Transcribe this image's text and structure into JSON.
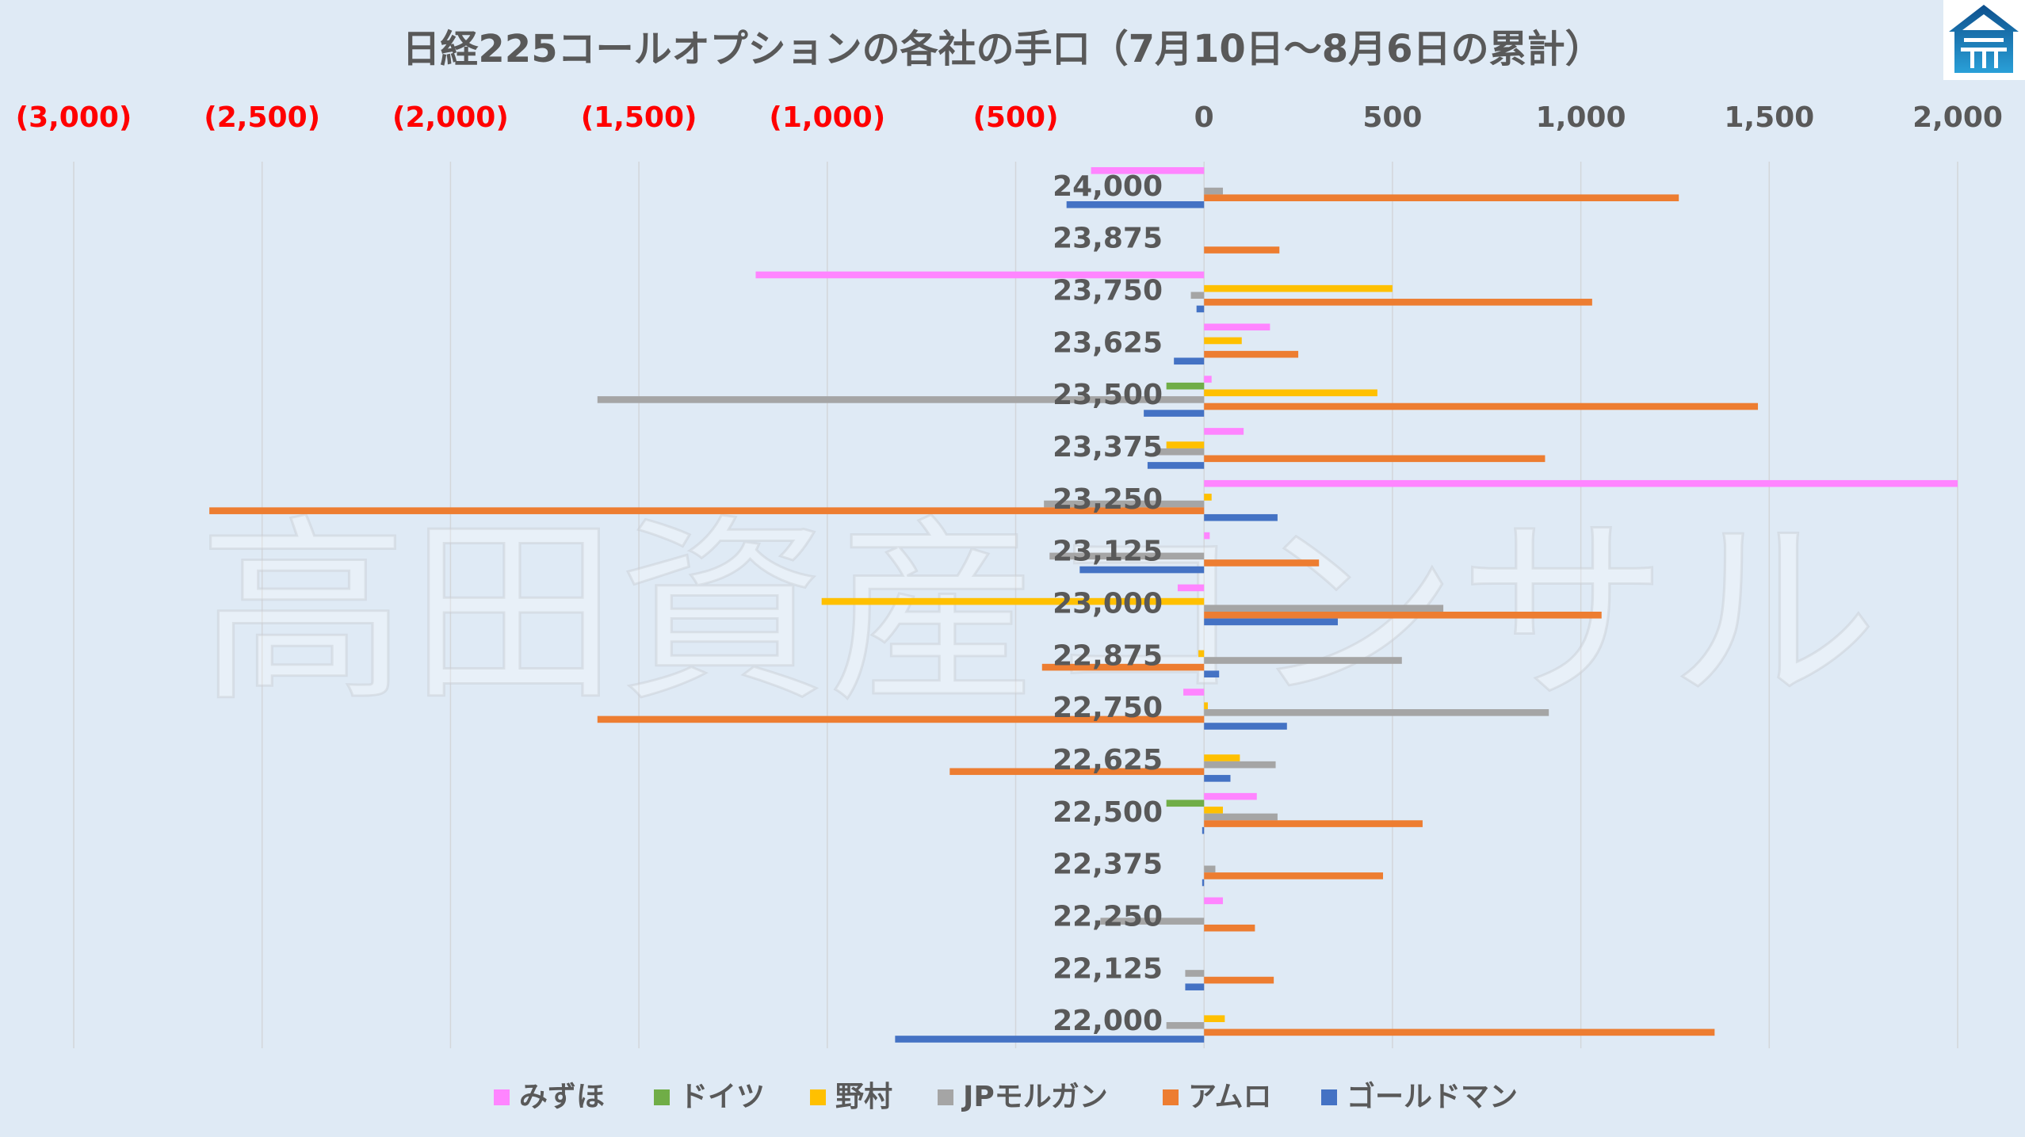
{
  "chart_data": {
    "type": "bar",
    "orientation": "horizontal",
    "title": "日経225コールオプションの各社の手口（7月10日〜8月6日の累計）",
    "xlim": [
      -3000,
      2000
    ],
    "x_ticks": [
      -3000,
      -2500,
      -2000,
      -1500,
      -1000,
      -500,
      0,
      500,
      1000,
      1500,
      2000
    ],
    "x_tick_labels": [
      "(3,000)",
      "(2,500)",
      "(2,000)",
      "(1,500)",
      "(1,000)",
      "(500)",
      "0",
      "500",
      "1,000",
      "1,500",
      "2,000"
    ],
    "negative_tick_color": "#ff0000",
    "positive_tick_color": "#595959",
    "grid": "vertical",
    "legend_position": "bottom",
    "categories": [
      "24,000",
      "23,875",
      "23,750",
      "23,625",
      "23,500",
      "23,375",
      "23,250",
      "23,125",
      "23,000",
      "22,875",
      "22,750",
      "22,625",
      "22,500",
      "22,375",
      "22,250",
      "22,125",
      "22,000"
    ],
    "series": [
      {
        "name": "みずほ",
        "color": "#ff85ff",
        "values": [
          -300,
          0,
          -1190,
          175,
          20,
          105,
          2000,
          15,
          -70,
          0,
          -55,
          0,
          140,
          0,
          50,
          0,
          0
        ]
      },
      {
        "name": "ドイツ",
        "color": "#70ad47",
        "values": [
          0,
          0,
          0,
          0,
          -100,
          0,
          0,
          0,
          0,
          0,
          0,
          0,
          -100,
          0,
          0,
          0,
          0
        ]
      },
      {
        "name": "野村",
        "color": "#ffc000",
        "values": [
          0,
          0,
          500,
          100,
          460,
          -100,
          20,
          0,
          -1015,
          -15,
          10,
          95,
          50,
          0,
          0,
          0,
          55
        ]
      },
      {
        "name": "JPモルガン",
        "color": "#a5a5a5",
        "values": [
          50,
          0,
          -35,
          0,
          -1610,
          -130,
          -425,
          -410,
          635,
          525,
          915,
          190,
          195,
          30,
          -275,
          -50,
          -100
        ]
      },
      {
        "name": "アムロ",
        "color": "#ed7d31",
        "values": [
          1260,
          200,
          1030,
          250,
          1470,
          905,
          -2640,
          305,
          1055,
          -430,
          -1610,
          -675,
          580,
          475,
          135,
          185,
          1355
        ]
      },
      {
        "name": "ゴールドマン",
        "color": "#4472c4",
        "values": [
          -365,
          0,
          -20,
          -80,
          -160,
          -150,
          195,
          -330,
          355,
          40,
          220,
          70,
          -5,
          -5,
          0,
          -50,
          -820
        ]
      }
    ]
  },
  "watermark": "高田資産コンサル",
  "logo": {
    "color": "#1f6fb0"
  }
}
